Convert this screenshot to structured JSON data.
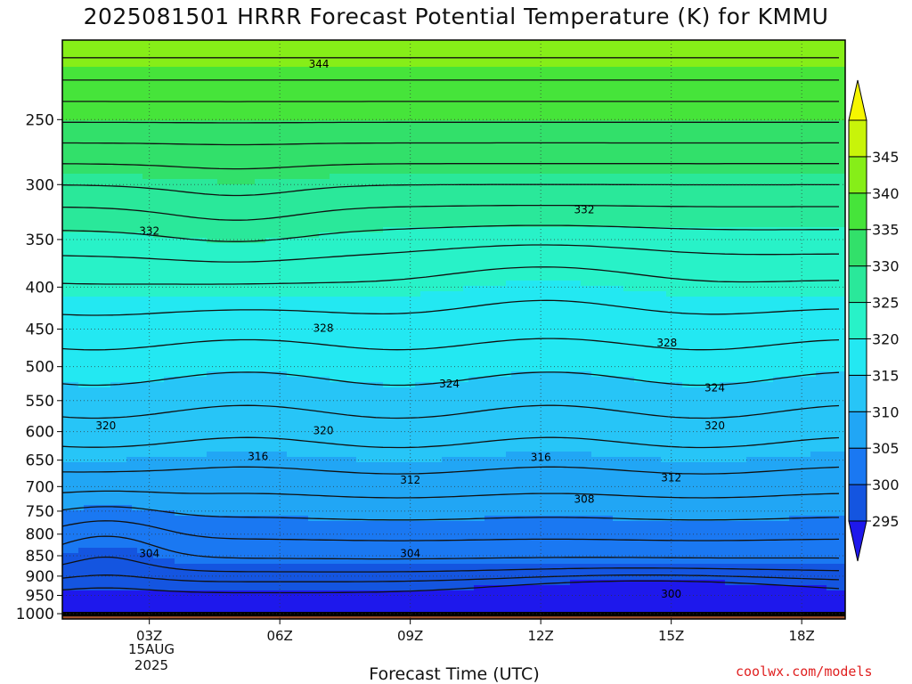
{
  "title": "2025081501 HRRR Forecast Potential Temperature (K) for KMMU",
  "xlabel": "Forecast Time (UTC)",
  "credit": "coolwx.com/models",
  "date_line1": "15AUG",
  "date_line2": "2025",
  "colors": {
    "ground": "#a0522d",
    "bands": [
      "#1e18ec",
      "#1455e0",
      "#1a78f2",
      "#21a6f5",
      "#27c5f7",
      "#23e8f2",
      "#28f2c8",
      "#2ae89a",
      "#32e06a",
      "#46e43a",
      "#86ee18",
      "#c8f40a",
      "#f6f600"
    ]
  },
  "chart_data": {
    "type": "heatmap",
    "title": "2025081501 HRRR Forecast Potential Temperature (K) for KMMU",
    "xlabel": "Forecast Time (UTC)",
    "ylabel": "",
    "x_ticks": [
      "03Z",
      "06Z",
      "09Z",
      "12Z",
      "15Z",
      "18Z"
    ],
    "x_hours": [
      3,
      6,
      9,
      12,
      15,
      18
    ],
    "xlim": [
      1,
      19
    ],
    "y_ticks": [
      250,
      300,
      350,
      400,
      450,
      500,
      550,
      600,
      650,
      700,
      750,
      800,
      850,
      900,
      950,
      1000
    ],
    "ylim": [
      1015,
      200
    ],
    "y_scale": "log",
    "grid": true,
    "colorbar": {
      "ticks": [
        295,
        300,
        305,
        310,
        315,
        320,
        325,
        330,
        335,
        340,
        345
      ],
      "levels": [
        295,
        300,
        305,
        310,
        315,
        320,
        325,
        330,
        335,
        340,
        345,
        350
      ]
    },
    "contour_labels": [
      {
        "value": "344",
        "hour": 6.9,
        "p": 214
      },
      {
        "value": "332",
        "hour": 3.0,
        "p": 342
      },
      {
        "value": "332",
        "hour": 13.0,
        "p": 322
      },
      {
        "value": "328",
        "hour": 7.0,
        "p": 449
      },
      {
        "value": "328",
        "hour": 14.9,
        "p": 468
      },
      {
        "value": "324",
        "hour": 9.9,
        "p": 525
      },
      {
        "value": "324",
        "hour": 16.0,
        "p": 531
      },
      {
        "value": "320",
        "hour": 2.0,
        "p": 590
      },
      {
        "value": "320",
        "hour": 7.0,
        "p": 598
      },
      {
        "value": "320",
        "hour": 16.0,
        "p": 590
      },
      {
        "value": "316",
        "hour": 5.5,
        "p": 643
      },
      {
        "value": "316",
        "hour": 12.0,
        "p": 645
      },
      {
        "value": "312",
        "hour": 9.0,
        "p": 687
      },
      {
        "value": "312",
        "hour": 15.0,
        "p": 683
      },
      {
        "value": "308",
        "hour": 13.0,
        "p": 725
      },
      {
        "value": "304",
        "hour": 3.0,
        "p": 845
      },
      {
        "value": "304",
        "hour": 9.0,
        "p": 845
      },
      {
        "value": "300",
        "hour": 15.0,
        "p": 946
      }
    ]
  }
}
